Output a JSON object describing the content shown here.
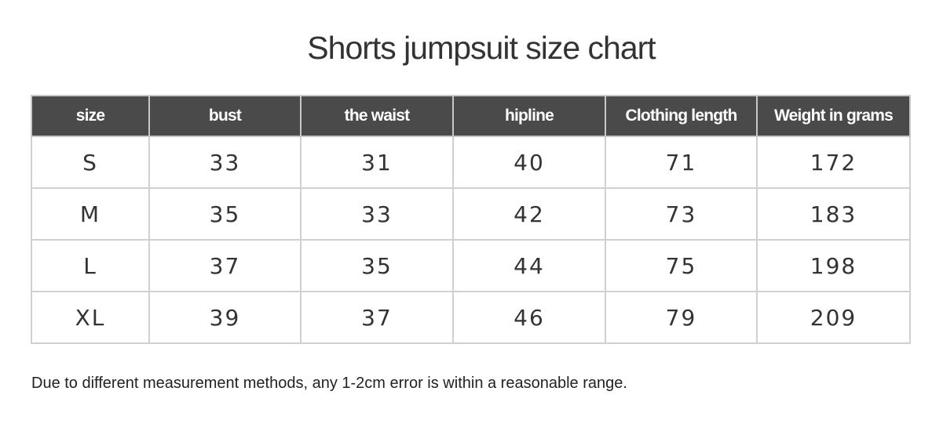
{
  "title": "Shorts jumpsuit size chart",
  "table": {
    "headers": [
      "size",
      "bust",
      "the waist",
      "hipline",
      "Clothing length",
      "Weight in grams"
    ],
    "rows": [
      [
        "S",
        "33",
        "31",
        "40",
        "71",
        "172"
      ],
      [
        "M",
        "35",
        "33",
        "42",
        "73",
        "183"
      ],
      [
        "L",
        "37",
        "35",
        "44",
        "75",
        "198"
      ],
      [
        "XL",
        "39",
        "37",
        "46",
        "79",
        "209"
      ]
    ]
  },
  "note": "Due to different measurement methods, any 1-2cm error is within a reasonable range."
}
